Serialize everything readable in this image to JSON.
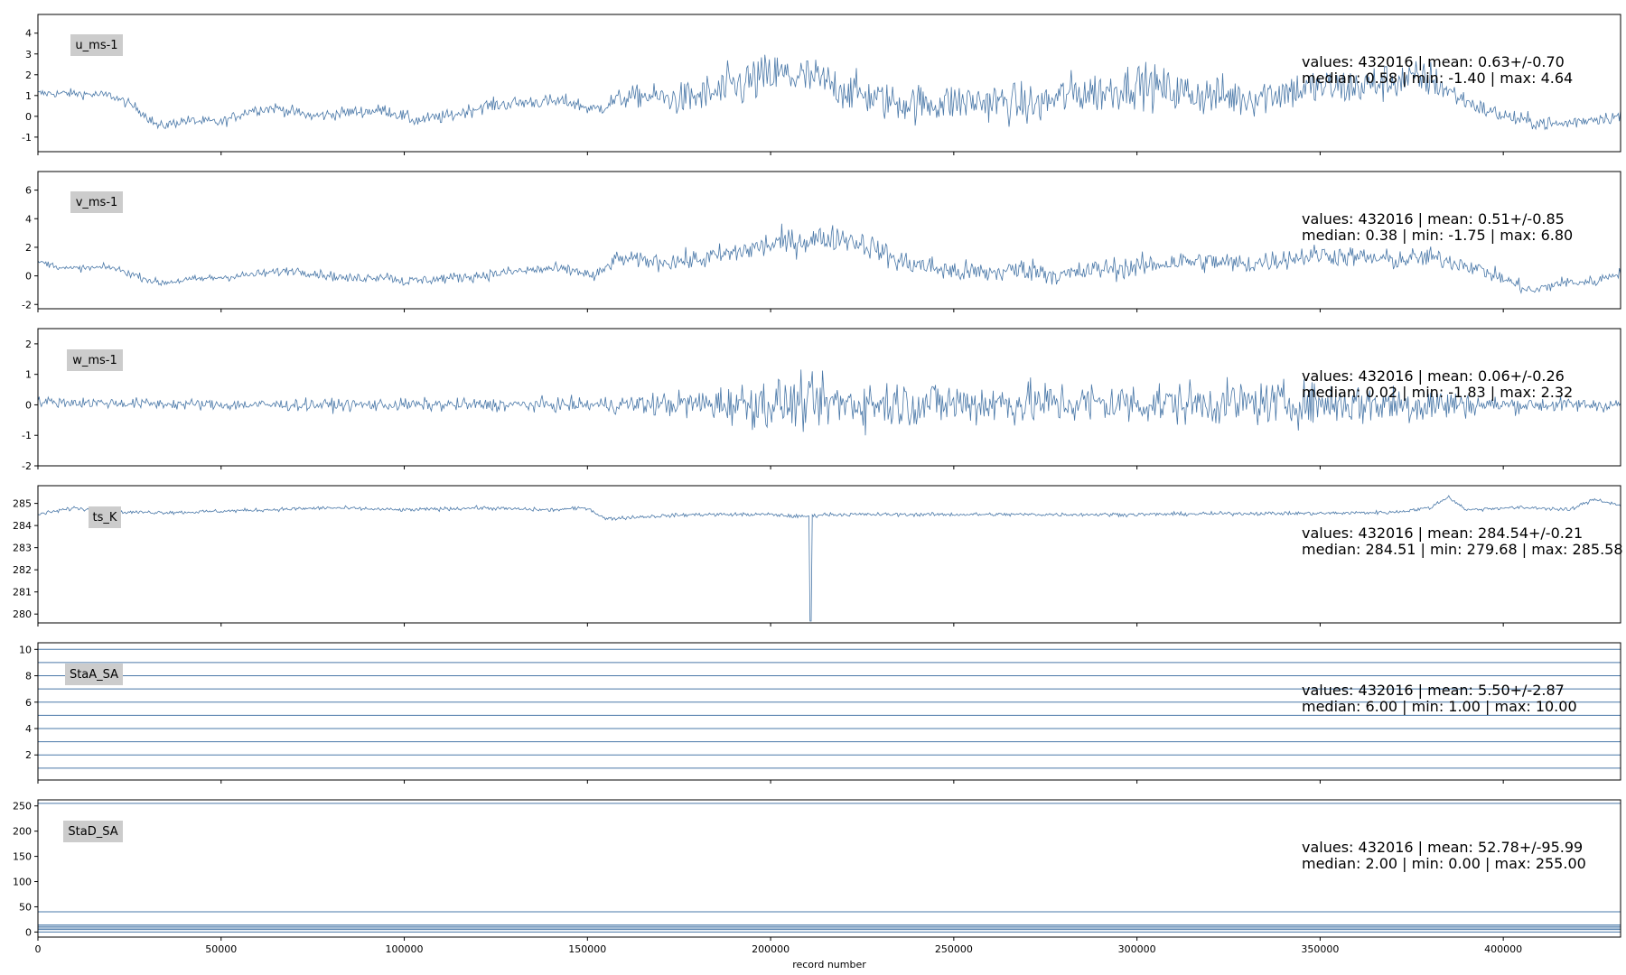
{
  "chart_data": {
    "type": "line",
    "xlabel": "record number",
    "xlim": [
      0,
      432016
    ],
    "x_ticks": [
      0,
      50000,
      100000,
      150000,
      200000,
      250000,
      300000,
      350000,
      400000
    ],
    "series_color": "#4a78a8",
    "label_box_color": "#cccccc",
    "panels": [
      {
        "name": "u_ms-1",
        "ylim": [
          -1.7,
          4.9
        ],
        "y_ticks": [
          -1,
          0,
          1,
          2,
          3,
          4
        ],
        "stats_line1": "values: 432016 | mean: 0.63+/-0.70",
        "stats_line2": "median: 0.58 | min: -1.40 | max: 4.64",
        "profile": [
          [
            0,
            1.1
          ],
          [
            10000,
            1.1
          ],
          [
            20000,
            1.0
          ],
          [
            27000,
            0.4
          ],
          [
            33000,
            -0.5
          ],
          [
            40000,
            -0.2
          ],
          [
            50000,
            -0.3
          ],
          [
            58000,
            0.3
          ],
          [
            65000,
            0.4
          ],
          [
            75000,
            0.0
          ],
          [
            85000,
            0.2
          ],
          [
            95000,
            0.3
          ],
          [
            103000,
            -0.2
          ],
          [
            112000,
            0.0
          ],
          [
            122000,
            0.5
          ],
          [
            135000,
            0.7
          ],
          [
            145000,
            0.7
          ],
          [
            152000,
            0.3
          ],
          [
            158000,
            0.8
          ],
          [
            165000,
            1.0
          ],
          [
            175000,
            0.8
          ],
          [
            185000,
            1.1
          ],
          [
            195000,
            1.7
          ],
          [
            202000,
            2.0
          ],
          [
            212000,
            1.8
          ],
          [
            222000,
            1.2
          ],
          [
            232000,
            0.7
          ],
          [
            242000,
            0.6
          ],
          [
            252000,
            0.7
          ],
          [
            262000,
            0.7
          ],
          [
            272000,
            0.5
          ],
          [
            282000,
            1.1
          ],
          [
            292000,
            1.2
          ],
          [
            300000,
            1.6
          ],
          [
            310000,
            1.2
          ],
          [
            320000,
            1.0
          ],
          [
            330000,
            0.9
          ],
          [
            340000,
            1.2
          ],
          [
            350000,
            1.4
          ],
          [
            360000,
            1.4
          ],
          [
            370000,
            1.7
          ],
          [
            380000,
            1.8
          ],
          [
            388000,
            0.9
          ],
          [
            395000,
            0.3
          ],
          [
            405000,
            -0.2
          ],
          [
            415000,
            -0.4
          ],
          [
            425000,
            -0.1
          ],
          [
            432016,
            0.0
          ]
        ],
        "noise": [
          [
            0,
            0.15
          ],
          [
            150000,
            0.25
          ],
          [
            170000,
            0.45
          ],
          [
            190000,
            0.85
          ],
          [
            230000,
            0.65
          ],
          [
            300000,
            0.75
          ],
          [
            330000,
            0.7
          ],
          [
            380000,
            0.65
          ],
          [
            390000,
            0.3
          ],
          [
            432016,
            0.22
          ]
        ]
      },
      {
        "name": "v_ms-1",
        "ylim": [
          -2.3,
          7.3
        ],
        "y_ticks": [
          -2,
          0,
          2,
          4,
          6
        ],
        "stats_line1": "values: 432016 | mean: 0.51+/-0.85",
        "stats_line2": "median: 0.38 | min: -1.75 | max: 6.80",
        "profile": [
          [
            0,
            1.0
          ],
          [
            8000,
            0.5
          ],
          [
            20000,
            0.6
          ],
          [
            33000,
            -0.5
          ],
          [
            40000,
            -0.3
          ],
          [
            55000,
            0.0
          ],
          [
            70000,
            0.4
          ],
          [
            85000,
            -0.2
          ],
          [
            95000,
            0.0
          ],
          [
            100000,
            -0.4
          ],
          [
            110000,
            -0.2
          ],
          [
            120000,
            0.0
          ],
          [
            130000,
            0.3
          ],
          [
            140000,
            0.5
          ],
          [
            148000,
            0.3
          ],
          [
            152000,
            -0.1
          ],
          [
            158000,
            1.2
          ],
          [
            170000,
            1.0
          ],
          [
            180000,
            1.1
          ],
          [
            190000,
            1.6
          ],
          [
            200000,
            2.2
          ],
          [
            210000,
            2.5
          ],
          [
            220000,
            2.7
          ],
          [
            228000,
            2.0
          ],
          [
            235000,
            1.0
          ],
          [
            240000,
            0.8
          ],
          [
            250000,
            0.3
          ],
          [
            260000,
            0.2
          ],
          [
            270000,
            0.5
          ],
          [
            280000,
            0.0
          ],
          [
            290000,
            0.5
          ],
          [
            300000,
            0.6
          ],
          [
            310000,
            1.0
          ],
          [
            320000,
            1.0
          ],
          [
            330000,
            0.8
          ],
          [
            340000,
            1.2
          ],
          [
            350000,
            1.5
          ],
          [
            360000,
            1.3
          ],
          [
            370000,
            1.1
          ],
          [
            380000,
            1.3
          ],
          [
            390000,
            0.8
          ],
          [
            400000,
            -0.2
          ],
          [
            408000,
            -1.1
          ],
          [
            415000,
            -0.5
          ],
          [
            425000,
            -0.4
          ],
          [
            432016,
            0.3
          ]
        ],
        "noise": [
          [
            0,
            0.15
          ],
          [
            150000,
            0.3
          ],
          [
            180000,
            0.5
          ],
          [
            200000,
            0.7
          ],
          [
            230000,
            0.6
          ],
          [
            300000,
            0.55
          ],
          [
            380000,
            0.5
          ],
          [
            400000,
            0.35
          ],
          [
            432016,
            0.25
          ]
        ]
      },
      {
        "name": "w_ms-1",
        "ylim": [
          -2.0,
          2.5
        ],
        "y_ticks": [
          -2,
          -1,
          0,
          1,
          2
        ],
        "stats_line1": "values: 432016 | mean: 0.06+/-0.26",
        "stats_line2": "median: 0.02 | min: -1.83 | max: 2.32",
        "profile": [
          [
            0,
            0.1
          ],
          [
            50000,
            0.0
          ],
          [
            100000,
            0.0
          ],
          [
            150000,
            0.0
          ],
          [
            200000,
            0.05
          ],
          [
            250000,
            0.05
          ],
          [
            300000,
            0.05
          ],
          [
            350000,
            0.05
          ],
          [
            400000,
            0.0
          ],
          [
            432016,
            0.0
          ]
        ],
        "noise": [
          [
            0,
            0.12
          ],
          [
            150000,
            0.16
          ],
          [
            180000,
            0.35
          ],
          [
            200000,
            0.6
          ],
          [
            240000,
            0.55
          ],
          [
            300000,
            0.5
          ],
          [
            380000,
            0.5
          ],
          [
            395000,
            0.2
          ],
          [
            432016,
            0.15
          ]
        ]
      },
      {
        "name": "ts_K",
        "ylim": [
          279.6,
          285.8
        ],
        "y_ticks": [
          280,
          281,
          282,
          283,
          284,
          285
        ],
        "stats_line1": "values: 432016 | mean: 284.54+/-0.21",
        "stats_line2": "median: 284.51 | min: 279.68 | max: 285.58",
        "profile": [
          [
            0,
            284.5
          ],
          [
            10000,
            284.8
          ],
          [
            20000,
            284.6
          ],
          [
            40000,
            284.6
          ],
          [
            60000,
            284.7
          ],
          [
            80000,
            284.8
          ],
          [
            100000,
            284.7
          ],
          [
            120000,
            284.8
          ],
          [
            140000,
            284.7
          ],
          [
            150000,
            284.8
          ],
          [
            155000,
            284.3
          ],
          [
            165000,
            284.4
          ],
          [
            180000,
            284.5
          ],
          [
            200000,
            284.5
          ],
          [
            208000,
            284.4
          ],
          [
            215000,
            284.5
          ],
          [
            250000,
            284.5
          ],
          [
            300000,
            284.5
          ],
          [
            330000,
            284.55
          ],
          [
            350000,
            284.55
          ],
          [
            370000,
            284.6
          ],
          [
            380000,
            284.8
          ],
          [
            385000,
            285.3
          ],
          [
            390000,
            284.7
          ],
          [
            400000,
            284.8
          ],
          [
            410000,
            284.8
          ],
          [
            418000,
            284.7
          ],
          [
            425000,
            285.2
          ],
          [
            432016,
            284.9
          ]
        ],
        "noise": [
          [
            0,
            0.06
          ],
          [
            432016,
            0.06
          ]
        ]
      },
      {
        "name": "StaA_SA",
        "ylim": [
          0.1,
          10.5
        ],
        "y_ticks": [
          2,
          4,
          6,
          8,
          10
        ],
        "stats_line1": "values: 432016 | mean: 5.50+/-2.87",
        "stats_line2": "median: 6.00 | min: 1.00 | max: 10.00",
        "levels": [
          1,
          2,
          3,
          4,
          5,
          6,
          7,
          8,
          9,
          10
        ]
      },
      {
        "name": "StaD_SA",
        "ylim": [
          -10,
          262
        ],
        "y_ticks": [
          0,
          50,
          100,
          150,
          200,
          250
        ],
        "stats_line1": "values: 432016 | mean: 52.78+/-95.99",
        "stats_line2": "median: 2.00 | min: 0.00 | max: 255.00",
        "levels": [
          0,
          5,
          8,
          11,
          14,
          40,
          255
        ]
      }
    ]
  }
}
